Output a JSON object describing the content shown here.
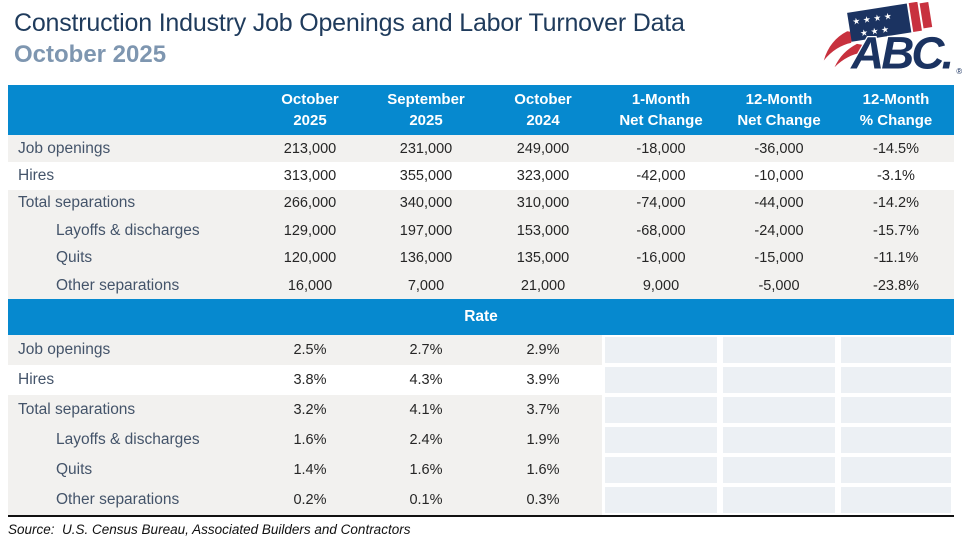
{
  "page": {
    "title": "Construction Industry Job Openings and Labor Turnover Data",
    "subtitle": "October 2025"
  },
  "logo": {
    "text": "ABC.",
    "registered": "®",
    "stars_row1": "★ ★ ★ ★",
    "stars_row2": "★ ★ ★"
  },
  "colors": {
    "accent_blue": "#0689CF",
    "title_navy": "#1F3B5C",
    "subtitle_steel_blue": "#7E96B0",
    "logo_navy": "#1B3361",
    "logo_red": "#C8313E",
    "band_gray": "#F2F1EF",
    "empty_cell_gray": "#ECF0F4",
    "label_text": "#44546A",
    "value_text": "#262626"
  },
  "chart_data": {
    "type": "table",
    "title": "Construction Industry Job Openings and Labor Turnover Data",
    "subtitle": "October 2025",
    "columns": [
      "October\n2025",
      "September\n2025",
      "October\n2024",
      "1-Month\nNet Change",
      "12-Month\nNet Change",
      "12-Month\n% Change"
    ],
    "sections": [
      {
        "name": "Levels",
        "header": null,
        "rows": [
          {
            "label": "Job openings",
            "indent": false,
            "shade": true,
            "values": [
              "213,000",
              "231,000",
              "249,000",
              "-18,000",
              "-36,000",
              "-14.5%"
            ]
          },
          {
            "label": "Hires",
            "indent": false,
            "shade": false,
            "values": [
              "313,000",
              "355,000",
              "323,000",
              "-42,000",
              "-10,000",
              "-3.1%"
            ]
          },
          {
            "label": "Total separations",
            "indent": false,
            "shade": true,
            "values": [
              "266,000",
              "340,000",
              "310,000",
              "-74,000",
              "-44,000",
              "-14.2%"
            ]
          },
          {
            "label": "Layoffs & discharges",
            "indent": true,
            "shade": true,
            "values": [
              "129,000",
              "197,000",
              "153,000",
              "-68,000",
              "-24,000",
              "-15.7%"
            ]
          },
          {
            "label": "Quits",
            "indent": true,
            "shade": true,
            "values": [
              "120,000",
              "136,000",
              "135,000",
              "-16,000",
              "-15,000",
              "-11.1%"
            ]
          },
          {
            "label": "Other separations",
            "indent": true,
            "shade": true,
            "values": [
              "16,000",
              "7,000",
              "21,000",
              "9,000",
              "-5,000",
              "-23.8%"
            ]
          }
        ]
      },
      {
        "name": "Rate",
        "header": "Rate",
        "rows": [
          {
            "label": "Job openings",
            "indent": false,
            "shade": true,
            "values": [
              "2.5%",
              "2.7%",
              "2.9%"
            ]
          },
          {
            "label": "Hires",
            "indent": false,
            "shade": false,
            "values": [
              "3.8%",
              "4.3%",
              "3.9%"
            ]
          },
          {
            "label": "Total separations",
            "indent": false,
            "shade": true,
            "values": [
              "3.2%",
              "4.1%",
              "3.7%"
            ]
          },
          {
            "label": "Layoffs & discharges",
            "indent": true,
            "shade": true,
            "values": [
              "1.6%",
              "2.4%",
              "1.9%"
            ]
          },
          {
            "label": "Quits",
            "indent": true,
            "shade": true,
            "values": [
              "1.4%",
              "1.6%",
              "1.6%"
            ]
          },
          {
            "label": "Other separations",
            "indent": true,
            "shade": true,
            "values": [
              "0.2%",
              "0.1%",
              "0.3%"
            ]
          }
        ]
      }
    ],
    "source": "Source:  U.S. Census Bureau, Associated Builders and Contractors"
  }
}
